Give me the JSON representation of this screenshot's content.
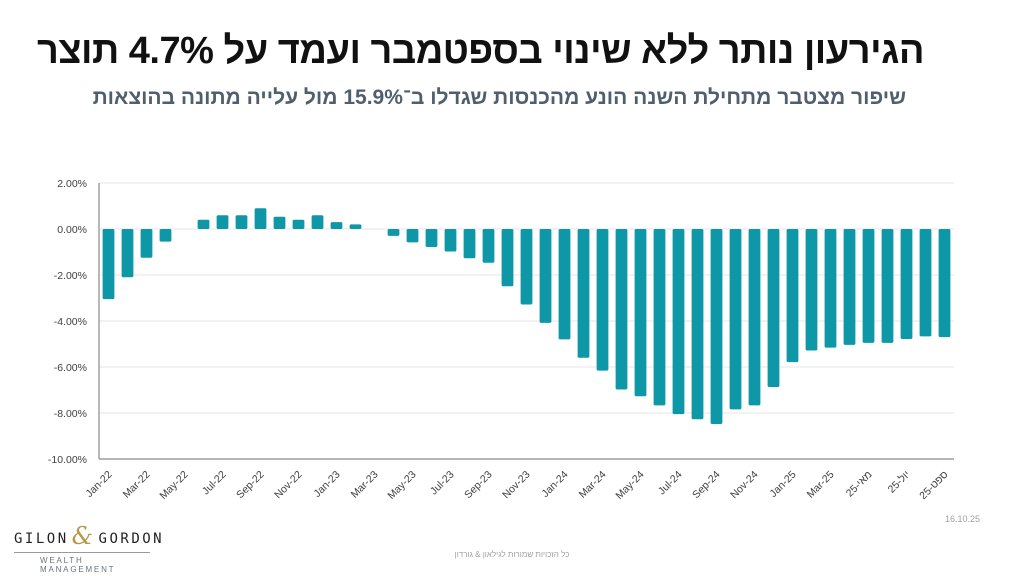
{
  "header": {
    "title": "הגירעון נותר ללא שינוי בספטמבר ועמד על 4.7% תוצר",
    "subtitle": "שיפור מצטבר מתחילת השנה הונע מהכנסות שגדלו ב־15.9% מול עלייה מתונה בהוצאות"
  },
  "chart_data": {
    "type": "bar",
    "title": "",
    "xlabel": "",
    "ylabel": "",
    "ylim": [
      -10,
      2
    ],
    "yticks": [
      2,
      0,
      -2,
      -4,
      -6,
      -8,
      -10
    ],
    "ytick_labels": [
      "2.00%",
      "0.00%",
      "-2.00%",
      "-4.00%",
      "-6.00%",
      "-8.00%",
      "-10.00%"
    ],
    "grid": true,
    "bar_color": "#0e97a6",
    "categories": [
      "Jan-22",
      "Feb-22",
      "Mar-22",
      "Apr-22",
      "May-22",
      "Jun-22",
      "Jul-22",
      "Aug-22",
      "Sep-22",
      "Oct-22",
      "Nov-22",
      "Dec-22",
      "Jan-23",
      "Feb-23",
      "Mar-23",
      "Apr-23",
      "May-23",
      "Jun-23",
      "Jul-23",
      "Aug-23",
      "Sep-23",
      "Oct-23",
      "Nov-23",
      "Dec-23",
      "Jan-24",
      "Feb-24",
      "Mar-24",
      "Apr-24",
      "May-24",
      "Jun-24",
      "Jul-24",
      "Aug-24",
      "Sep-24",
      "Oct-24",
      "Nov-24",
      "Dec-24",
      "Jan-25",
      "Feb-25",
      "Mar-25",
      "Apr-25",
      "May-25",
      "Jun-25",
      "Jul-25",
      "Aug-25",
      "Sep-25"
    ],
    "xtick_labels": [
      "Jan-22",
      "Mar-22",
      "May-22",
      "Jul-22",
      "Sep-22",
      "Nov-22",
      "Jan-23",
      "Mar-23",
      "May-23",
      "Jul-23",
      "Sep-23",
      "Nov-23",
      "Jan-24",
      "Mar-24",
      "May-24",
      "Jul-24",
      "Sep-24",
      "Nov-24",
      "Jan-25",
      "Mar-25",
      "מאי-25",
      "יול-25",
      "ספט-25"
    ],
    "values": [
      -3.05,
      -2.1,
      -1.25,
      -0.55,
      0.0,
      0.4,
      0.6,
      0.6,
      0.9,
      0.53,
      0.4,
      0.6,
      0.3,
      0.2,
      0.0,
      -0.3,
      -0.58,
      -0.78,
      -0.98,
      -1.27,
      -1.47,
      -2.49,
      -3.28,
      -4.08,
      -4.8,
      -5.6,
      -6.16,
      -6.98,
      -7.27,
      -7.67,
      -8.05,
      -8.27,
      -8.48,
      -7.84,
      -7.67,
      -6.87,
      -5.79,
      -5.28,
      -5.16,
      -5.04,
      -4.95,
      -4.95,
      -4.78,
      -4.67,
      -4.7
    ],
    "unit": "%"
  },
  "branding": {
    "logo_left": "GILON",
    "logo_amp": "&",
    "logo_right": "GORDON",
    "logo_sub": "WEALTH MANAGEMENT"
  },
  "footer": {
    "copyright": "כל הזכויות שמורות לגילאון & גורדון",
    "date": "16.10.25"
  }
}
